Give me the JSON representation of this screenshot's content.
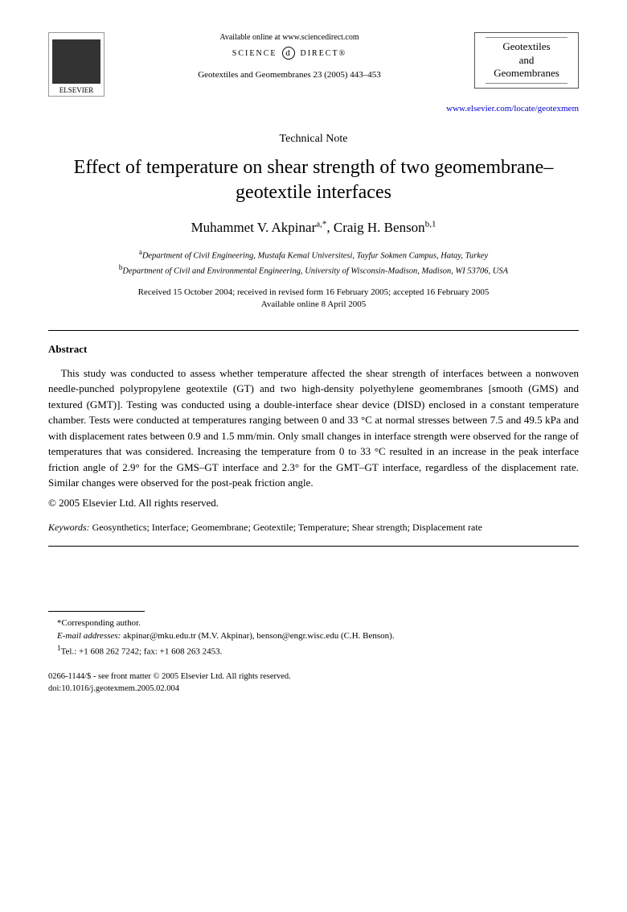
{
  "header": {
    "elsevier_label": "ELSEVIER",
    "available_online": "Available online at www.sciencedirect.com",
    "science_left": "SCIENCE",
    "science_right": "DIRECT®",
    "journal_ref": "Geotextiles and Geomembranes 23 (2005) 443–453",
    "journal_box_line1": "Geotextiles",
    "journal_box_line2": "and",
    "journal_box_line3": "Geomembranes",
    "url": "www.elsevier.com/locate/geotexmem"
  },
  "article": {
    "type": "Technical Note",
    "title": "Effect of temperature on shear strength of two geomembrane–geotextile interfaces",
    "author1_name": "Muhammet V. Akpinar",
    "author1_sup": "a,*",
    "author2_name": "Craig H. Benson",
    "author2_sup": "b,1",
    "affil_a_sup": "a",
    "affil_a": "Department of Civil Engineering, Mustafa Kemal Universitesi, Tayfur Sokmen Campus, Hatay, Turkey",
    "affil_b_sup": "b",
    "affil_b": "Department of Civil and Environmental Engineering, University of Wisconsin-Madison, Madison, WI 53706, USA",
    "dates_line1": "Received 15 October 2004; received in revised form 16 February 2005; accepted 16 February 2005",
    "dates_line2": "Available online 8 April 2005"
  },
  "abstract": {
    "heading": "Abstract",
    "text": "This study was conducted to assess whether temperature affected the shear strength of interfaces between a nonwoven needle-punched polypropylene geotextile (GT) and two high-density polyethylene geomembranes [smooth (GMS) and textured (GMT)]. Testing was conducted using a double-interface shear device (DISD) enclosed in a constant temperature chamber. Tests were conducted at temperatures ranging between 0 and 33 °C at normal stresses between 7.5 and 49.5 kPa and with displacement rates between 0.9 and 1.5 mm/min. Only small changes in interface strength were observed for the range of temperatures that was considered. Increasing the temperature from 0 to 33 °C resulted in an increase in the peak interface friction angle of 2.9° for the GMS–GT interface and 2.3° for the GMT–GT interface, regardless of the displacement rate. Similar changes were observed for the post-peak friction angle.",
    "copyright": "© 2005 Elsevier Ltd. All rights reserved."
  },
  "keywords": {
    "label": "Keywords:",
    "text": "Geosynthetics; Interface; Geomembrane; Geotextile; Temperature; Shear strength; Displacement rate"
  },
  "footnotes": {
    "corresponding": "*Corresponding author.",
    "email_label": "E-mail addresses:",
    "email_text": "akpinar@mku.edu.tr (M.V. Akpinar), benson@engr.wisc.edu (C.H. Benson).",
    "tel_sup": "1",
    "tel": "Tel.: +1 608 262 7242; fax: +1 608 263 2453."
  },
  "doi": {
    "line1": "0266-1144/$ - see front matter © 2005 Elsevier Ltd. All rights reserved.",
    "line2": "doi:10.1016/j.geotexmem.2005.02.004"
  }
}
